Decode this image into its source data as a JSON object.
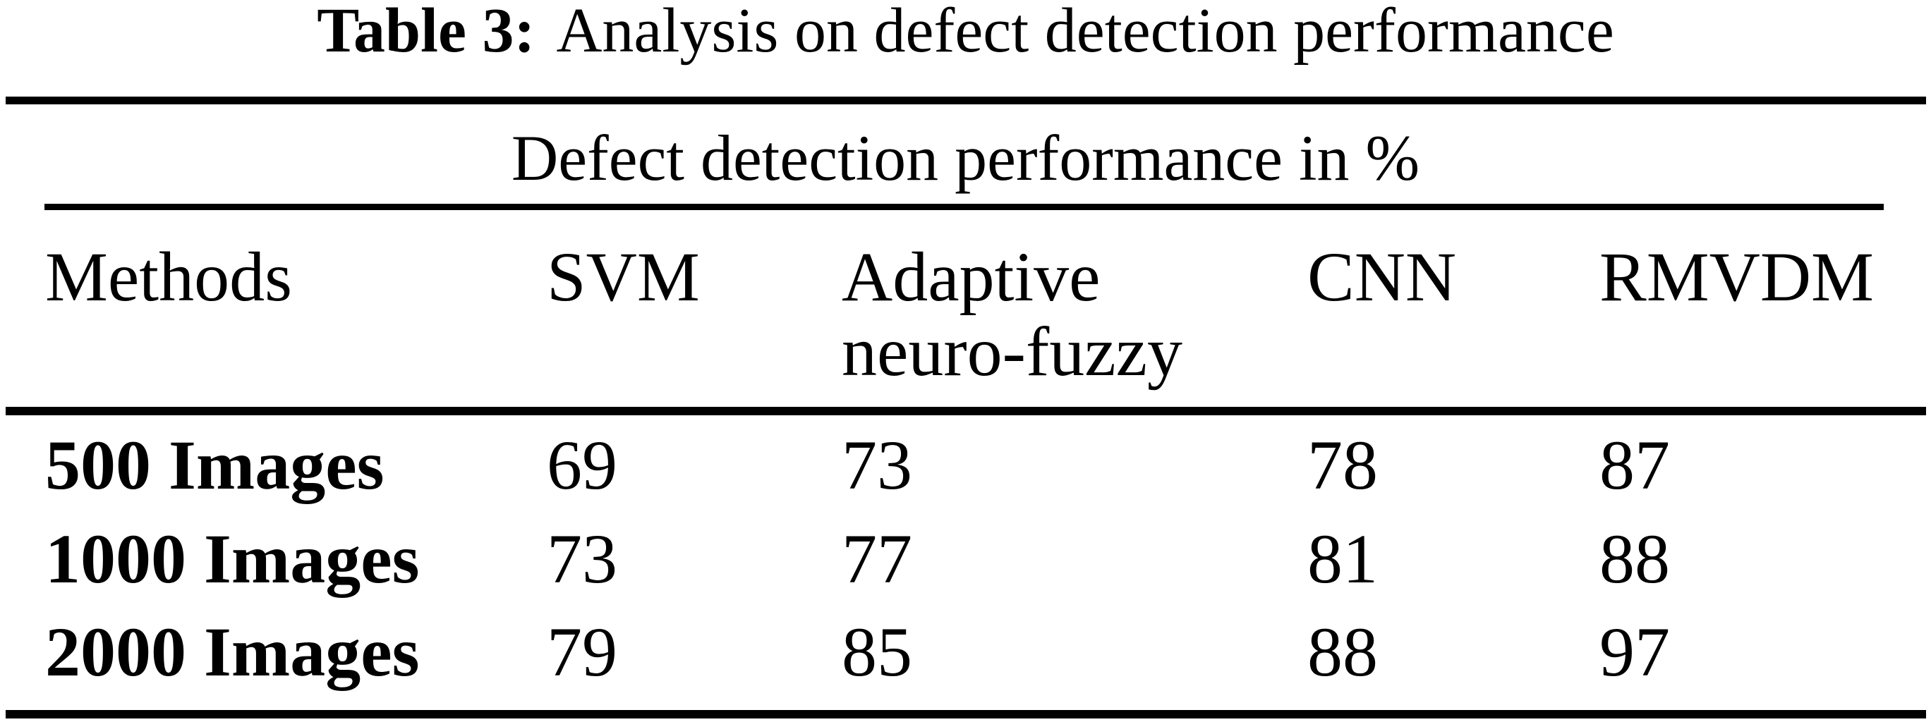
{
  "caption": {
    "label": "Table 3:",
    "text": "Analysis on defect detection performance"
  },
  "table": {
    "span_header": "Defect detection performance in %",
    "columns": [
      "Methods",
      "SVM",
      "Adaptive neuro-fuzzy",
      "CNN",
      "RMVDM"
    ],
    "rows": [
      {
        "label": "500 Images",
        "values": [
          "69",
          "73",
          "78",
          "87"
        ]
      },
      {
        "label": "1000 Images",
        "values": [
          "73",
          "77",
          "81",
          "88"
        ]
      },
      {
        "label": "2000 Images",
        "values": [
          "79",
          "85",
          "88",
          "97"
        ]
      }
    ]
  },
  "colors": {
    "text": "#000000",
    "background": "#ffffff",
    "rule": "#000000"
  },
  "chart_data": {
    "type": "table",
    "title": "Table 3: Analysis on defect detection performance",
    "group_header": "Defect detection performance in %",
    "columns": [
      "Methods",
      "SVM",
      "Adaptive neuro-fuzzy",
      "CNN",
      "RMVDM"
    ],
    "rows": [
      [
        "500 Images",
        69,
        73,
        78,
        87
      ],
      [
        "1000 Images",
        73,
        77,
        81,
        88
      ],
      [
        "2000 Images",
        79,
        85,
        88,
        97
      ]
    ]
  }
}
